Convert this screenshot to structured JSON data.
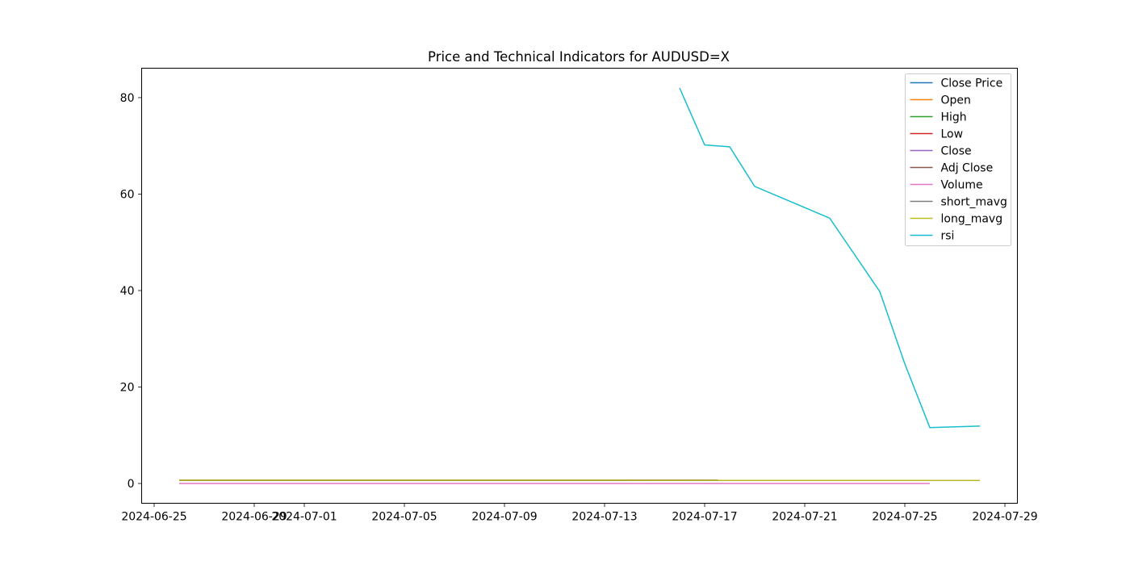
{
  "chart_data": {
    "type": "line",
    "title": "Price and Technical Indicators for AUDUSD=X",
    "xlabel": "",
    "ylabel": "",
    "x_axis_type": "date",
    "xlim": [
      "2024-06-24T12:00",
      "2024-07-29T12:00"
    ],
    "ylim": [
      -4.1,
      86.1
    ],
    "x_ticks": [
      "2024-06-25",
      "2024-06-29",
      "2024-07-01",
      "2024-07-05",
      "2024-07-09",
      "2024-07-13",
      "2024-07-17",
      "2024-07-21",
      "2024-07-25",
      "2024-07-29"
    ],
    "y_ticks": [
      0,
      20,
      40,
      60,
      80
    ],
    "grid": false,
    "legend_position": "top-right",
    "series": [
      {
        "name": "Close Price",
        "color": "#1f77b4",
        "x": [
          "2024-06-26",
          "2024-07-28"
        ],
        "values": [
          0.67,
          0.66
        ]
      },
      {
        "name": "Open",
        "color": "#ff7f0e",
        "x": [
          "2024-06-26",
          "2024-07-28"
        ],
        "values": [
          0.67,
          0.66
        ]
      },
      {
        "name": "High",
        "color": "#2ca02c",
        "x": [
          "2024-06-26",
          "2024-07-28"
        ],
        "values": [
          0.67,
          0.66
        ]
      },
      {
        "name": "Low",
        "color": "#d62728",
        "x": [
          "2024-06-26",
          "2024-07-28"
        ],
        "values": [
          0.67,
          0.66
        ]
      },
      {
        "name": "Close",
        "color": "#9467bd",
        "x": [
          "2024-06-26",
          "2024-07-28"
        ],
        "values": [
          0.67,
          0.66
        ]
      },
      {
        "name": "Adj Close",
        "color": "#8c564b",
        "x": [
          "2024-06-26",
          "2024-07-28"
        ],
        "values": [
          0.67,
          0.66
        ]
      },
      {
        "name": "Volume",
        "color": "#e377c2",
        "x": [
          "2024-06-26",
          "2024-07-26"
        ],
        "values": [
          0,
          0
        ]
      },
      {
        "name": "short_mavg",
        "color": "#7f7f7f",
        "x": [
          "2024-06-26",
          "2024-07-28"
        ],
        "values": [
          0.67,
          0.66
        ]
      },
      {
        "name": "long_mavg",
        "color": "#bcbd22",
        "x": [
          "2024-06-26",
          "2024-07-28"
        ],
        "values": [
          0.67,
          0.66
        ]
      },
      {
        "name": "rsi",
        "color": "#17becf",
        "x": [
          "2024-07-16",
          "2024-07-17",
          "2024-07-18",
          "2024-07-19",
          "2024-07-22",
          "2024-07-24",
          "2024-07-25",
          "2024-07-26",
          "2024-07-28"
        ],
        "values": [
          82.0,
          70.2,
          69.8,
          61.6,
          55.0,
          39.8,
          24.8,
          11.6,
          11.9
        ]
      }
    ]
  }
}
